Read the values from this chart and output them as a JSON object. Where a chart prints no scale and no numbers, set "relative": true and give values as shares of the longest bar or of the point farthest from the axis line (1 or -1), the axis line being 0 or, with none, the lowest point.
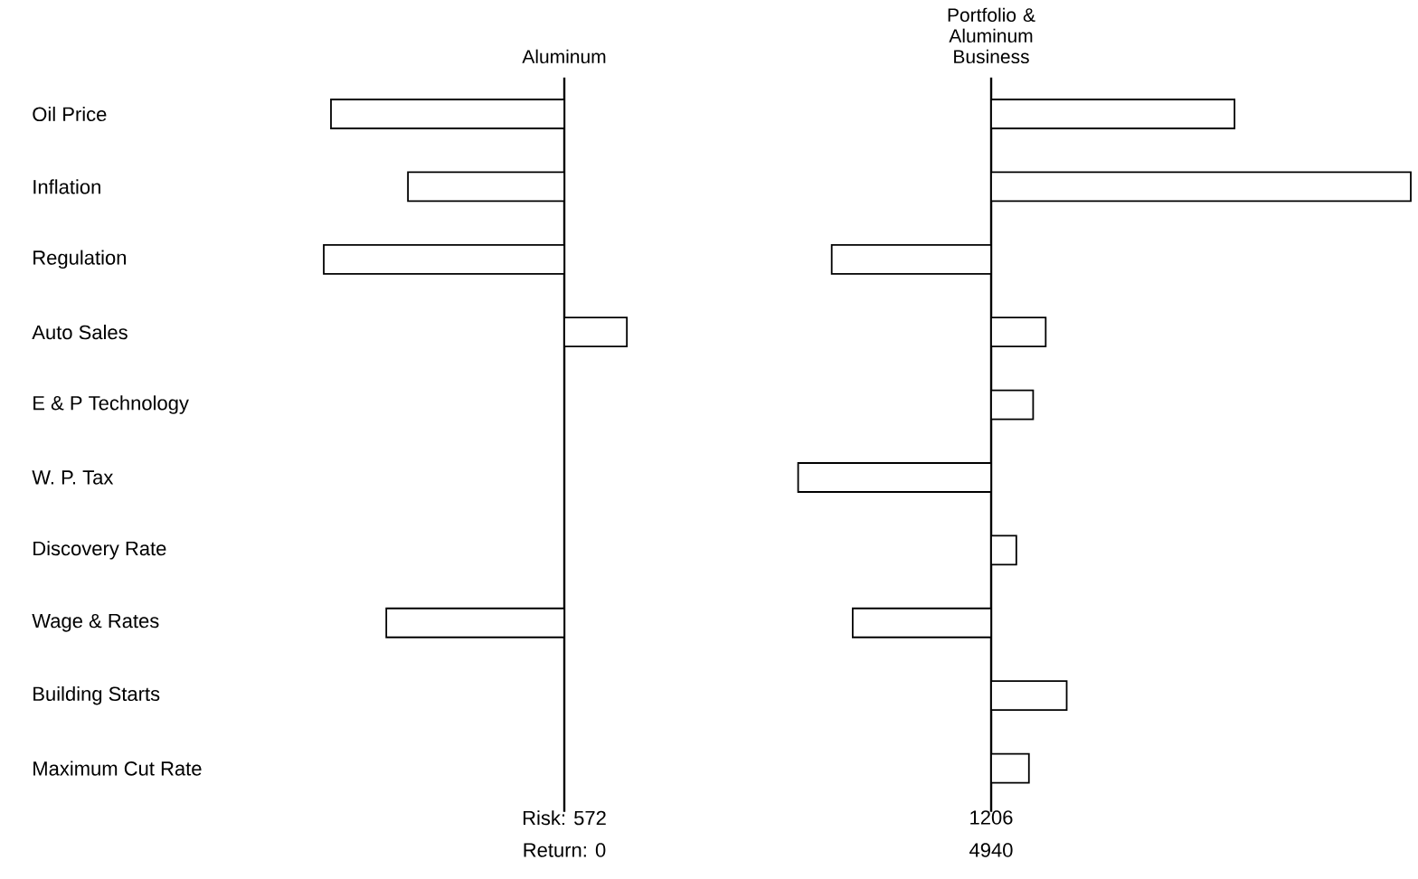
{
  "chart_data": [
    {
      "type": "bar",
      "orientation": "horizontal",
      "relative": true,
      "title": "Aluminum",
      "color": "#ffffff",
      "tick_labels": "y",
      "categories": [
        "Oil Price",
        "Inflation",
        "Regulation",
        "Auto Sales",
        "E & P Technology",
        "W. P. Tax",
        "Discovery Rate",
        "Wage & Rates",
        "Building Starts",
        "Maximum Cut Rate"
      ],
      "values": [
        -0.97,
        -0.65,
        -1,
        0.26,
        null,
        null,
        null,
        -0.74,
        null,
        null
      ],
      "annotations": [
        "Risk: 572",
        "Return: 0"
      ]
    },
    {
      "type": "bar",
      "orientation": "horizontal",
      "relative": true,
      "title": "Portfolio & Aluminum Business",
      "color": "#ffffff",
      "tick_labels": false,
      "categories": [
        null,
        null,
        null,
        null,
        null,
        null,
        null,
        null,
        null,
        null
      ],
      "values": [
        0.58,
        1,
        -0.38,
        0.13,
        0.1,
        -0.46,
        0.06,
        -0.33,
        0.18,
        0.09
      ],
      "annotations": [
        "1206",
        "4940"
      ]
    }
  ]
}
